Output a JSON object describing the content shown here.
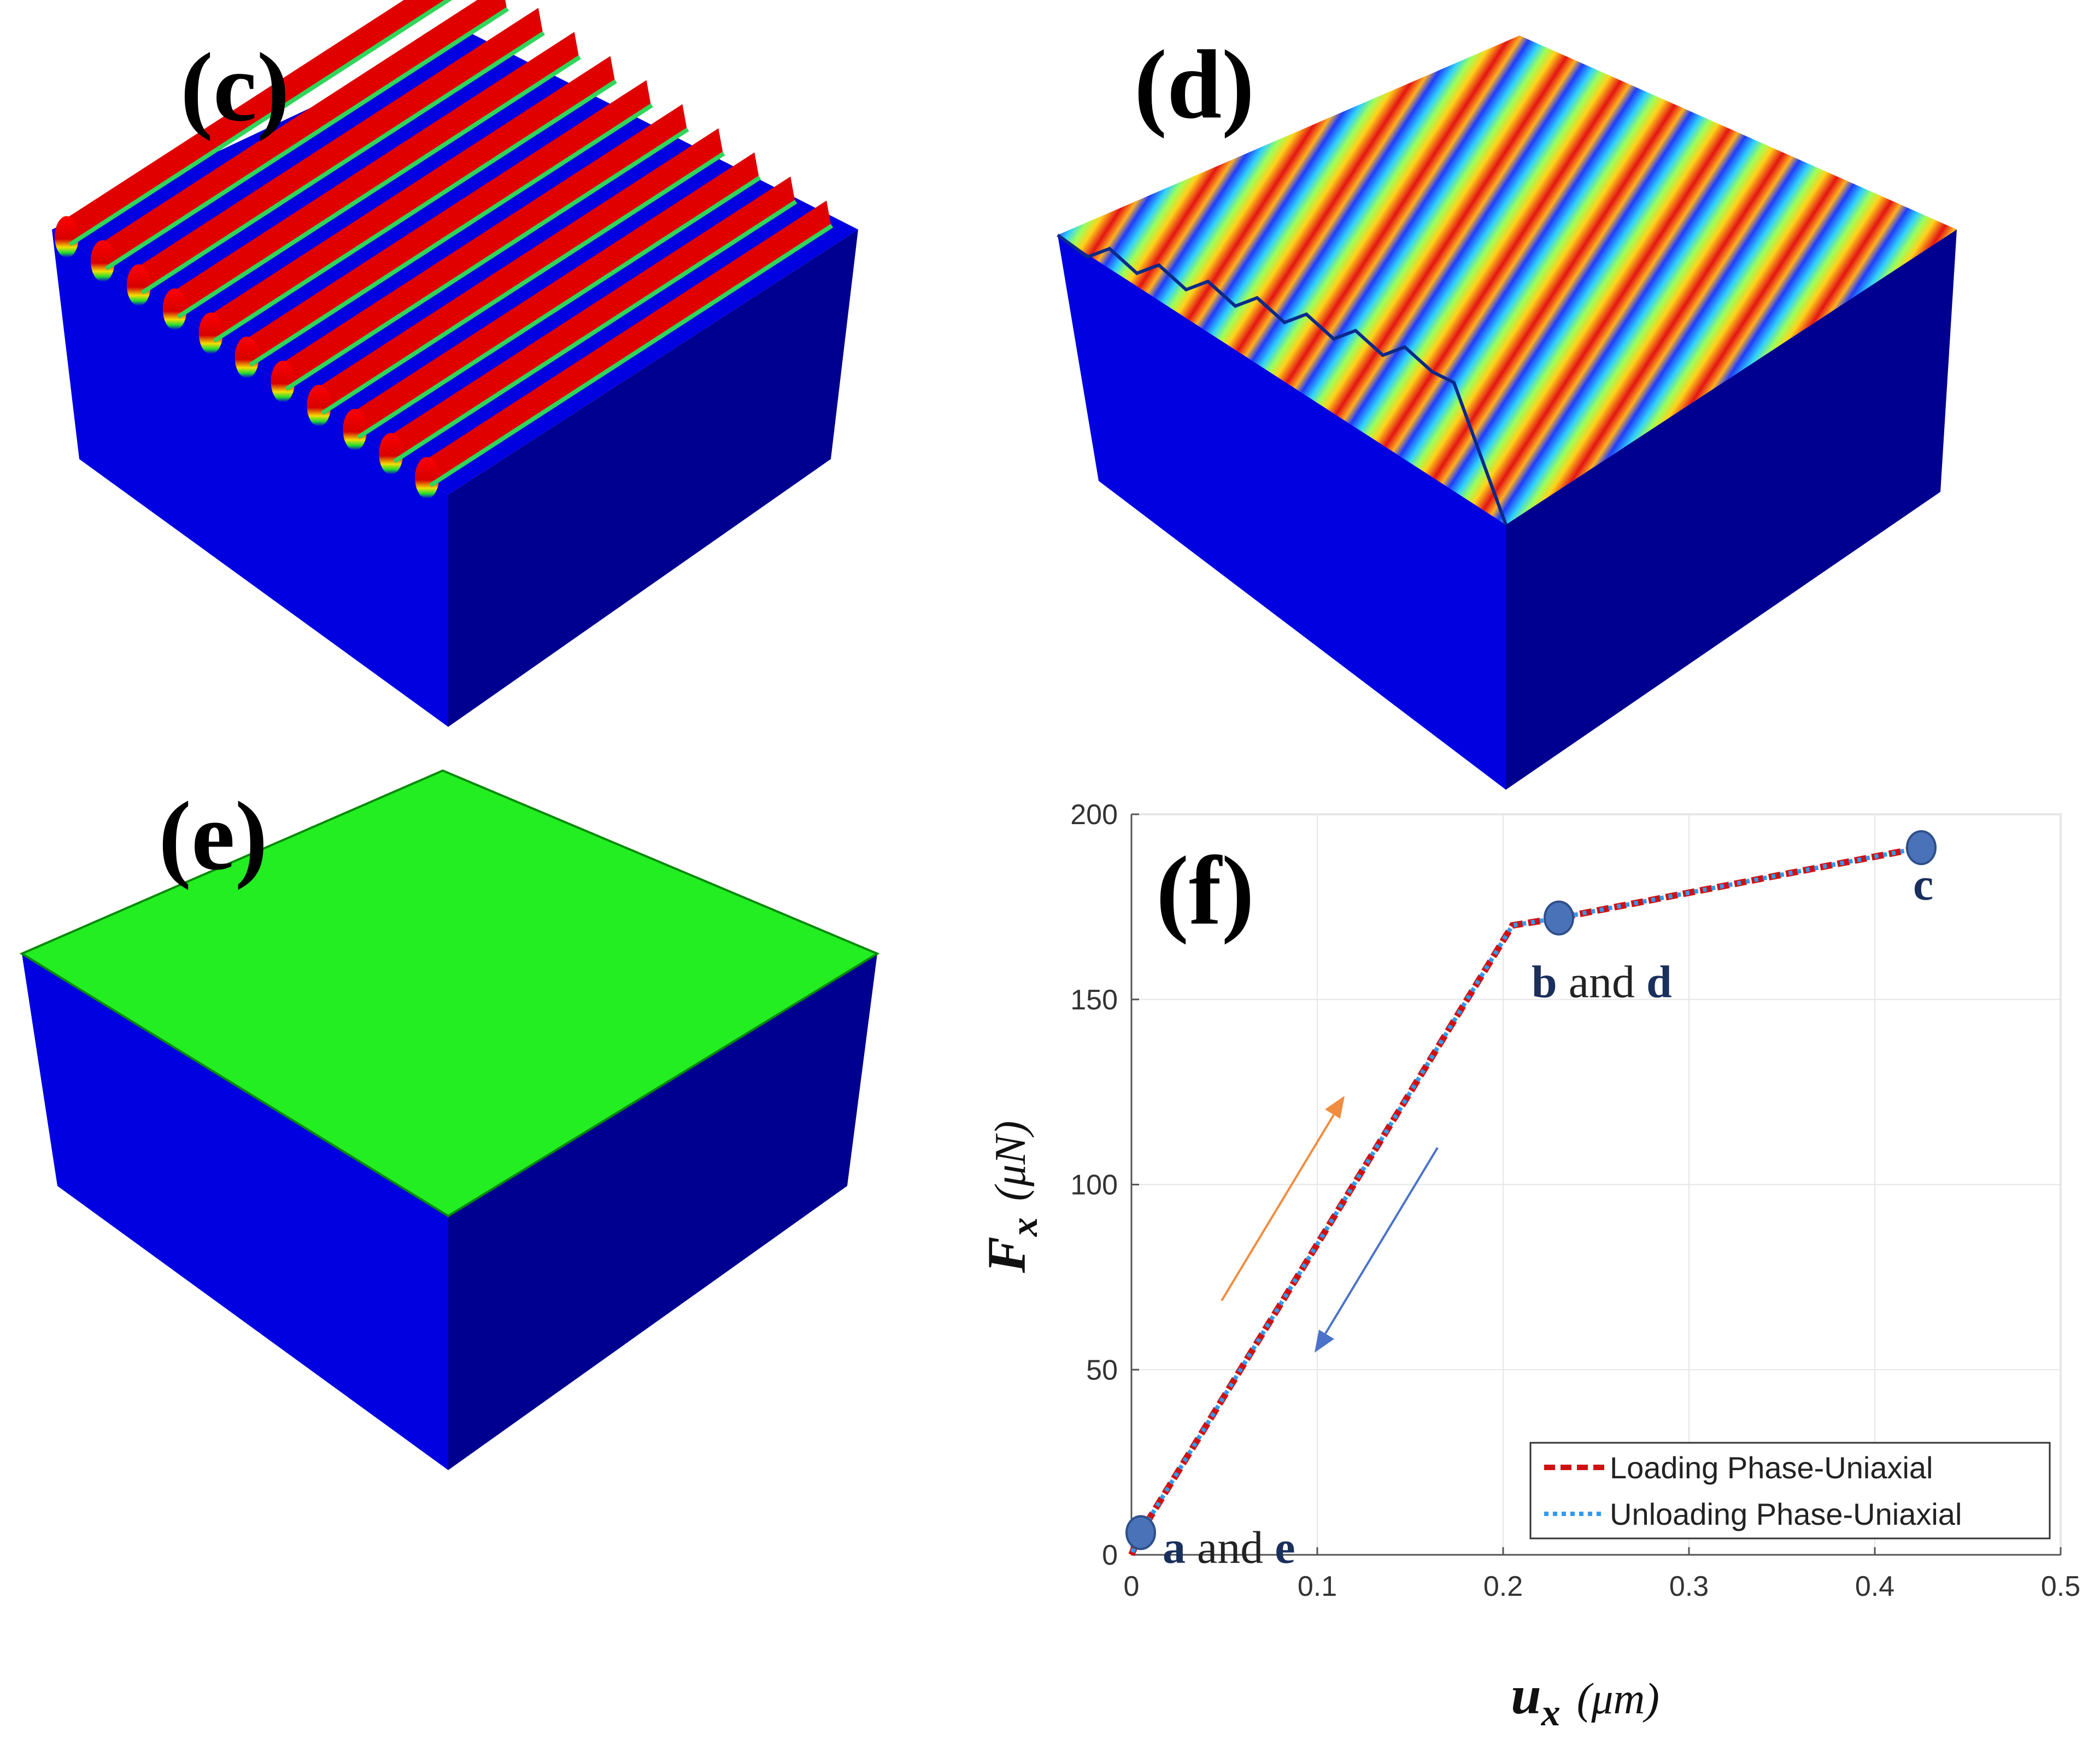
{
  "panels": {
    "c": {
      "label": "(c)"
    },
    "d": {
      "label": "(d)"
    },
    "e": {
      "label": "(e)"
    },
    "f": {
      "label": "(f)"
    }
  },
  "colors": {
    "blue_face": "#0000e0",
    "dark_blue_face": "#000090",
    "red_stripe": "#e00000",
    "green_top": "#22ee22",
    "loading": "#d01010",
    "unloading": "#3399ee",
    "marker": "#4a72b8",
    "arrow_up": "#f08c40",
    "arrow_down": "#4a72c8"
  },
  "chart_data": {
    "type": "line",
    "title": "",
    "xlabel": "u",
    "xlabel_sub": "x",
    "xlabel_unit": "(μm)",
    "ylabel": "F",
    "ylabel_sub": "x",
    "ylabel_unit": "(μN)",
    "xlim": [
      0,
      0.5
    ],
    "ylim": [
      0,
      200
    ],
    "xticks": [
      "0",
      "0.1",
      "0.2",
      "0.3",
      "0.4",
      "0.5"
    ],
    "yticks": [
      "0",
      "50",
      "100",
      "150",
      "200"
    ],
    "grid": true,
    "legend_position": "bottom-right",
    "series": [
      {
        "name": "Loading Phase-Uniaxial",
        "style": "dashed",
        "x": [
          0,
          0.005,
          0.205,
          0.23,
          0.425
        ],
        "y": [
          0,
          6,
          170,
          172,
          191
        ]
      },
      {
        "name": "Unloading Phase-Uniaxial",
        "style": "dotted",
        "x": [
          0.425,
          0.23,
          0.205,
          0.005,
          0
        ],
        "y": [
          191,
          172,
          170,
          6,
          0
        ]
      }
    ],
    "points": [
      {
        "x": 0.005,
        "y": 6,
        "letters": [
          "a",
          "e"
        ],
        "joiner": "and"
      },
      {
        "x": 0.23,
        "y": 172,
        "letters": [
          "b",
          "d"
        ],
        "joiner": "and"
      },
      {
        "x": 0.425,
        "y": 191,
        "letters": [
          "c"
        ],
        "joiner": ""
      }
    ]
  }
}
